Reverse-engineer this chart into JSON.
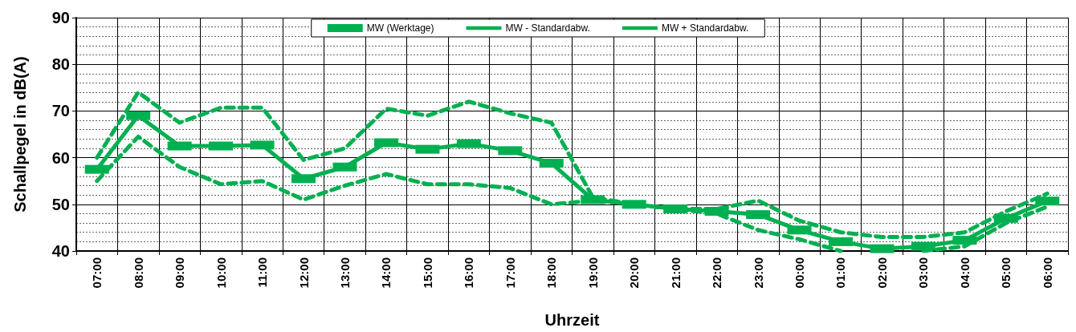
{
  "chart_data": {
    "type": "line",
    "xlabel": "Uhrzeit",
    "ylabel": "Schallpegel in dB(A)",
    "categories": [
      "07:00",
      "08:00",
      "09:00",
      "10:00",
      "11:00",
      "12:00",
      "13:00",
      "14:00",
      "15:00",
      "16:00",
      "17:00",
      "18:00",
      "19:00",
      "20:00",
      "21:00",
      "22:00",
      "23:00",
      "00:00",
      "01:00",
      "02:00",
      "03:00",
      "04:00",
      "05:00",
      "06:00"
    ],
    "series": [
      {
        "name": "MW (Werktage)",
        "color": "#00b050",
        "line_style": "solid",
        "marker": "square",
        "values": [
          57.5,
          69,
          62.5,
          62.5,
          62.7,
          55.5,
          58,
          63.2,
          61.8,
          63,
          61.5,
          58.8,
          51,
          50,
          49,
          48.5,
          47.8,
          44.5,
          42,
          40.5,
          41,
          42.3,
          47,
          50.7
        ]
      },
      {
        "name": "MW - Standardabw.",
        "color": "#00b050",
        "line_style": "dashed",
        "marker": "none",
        "values": [
          55,
          64.5,
          58,
          54.3,
          55,
          51,
          54,
          56.5,
          54.3,
          54.3,
          53.5,
          50,
          50.8,
          50,
          49,
          48,
          44.5,
          42.5,
          40,
          null,
          40,
          41,
          46,
          49.5
        ]
      },
      {
        "name": "MW + Standardabw.",
        "color": "#00b050",
        "line_style": "dashed",
        "marker": "none",
        "values": [
          60,
          74,
          67.5,
          70.7,
          70.7,
          59.5,
          62,
          70.5,
          69,
          72,
          69.5,
          67.5,
          51.5,
          50,
          49,
          49,
          50.8,
          46.5,
          44,
          43,
          43,
          44,
          48.5,
          52.3
        ]
      }
    ],
    "ylim": [
      40,
      90
    ],
    "yticks": [
      40,
      50,
      60,
      70,
      80,
      90
    ],
    "grid": true,
    "legend": "top"
  }
}
